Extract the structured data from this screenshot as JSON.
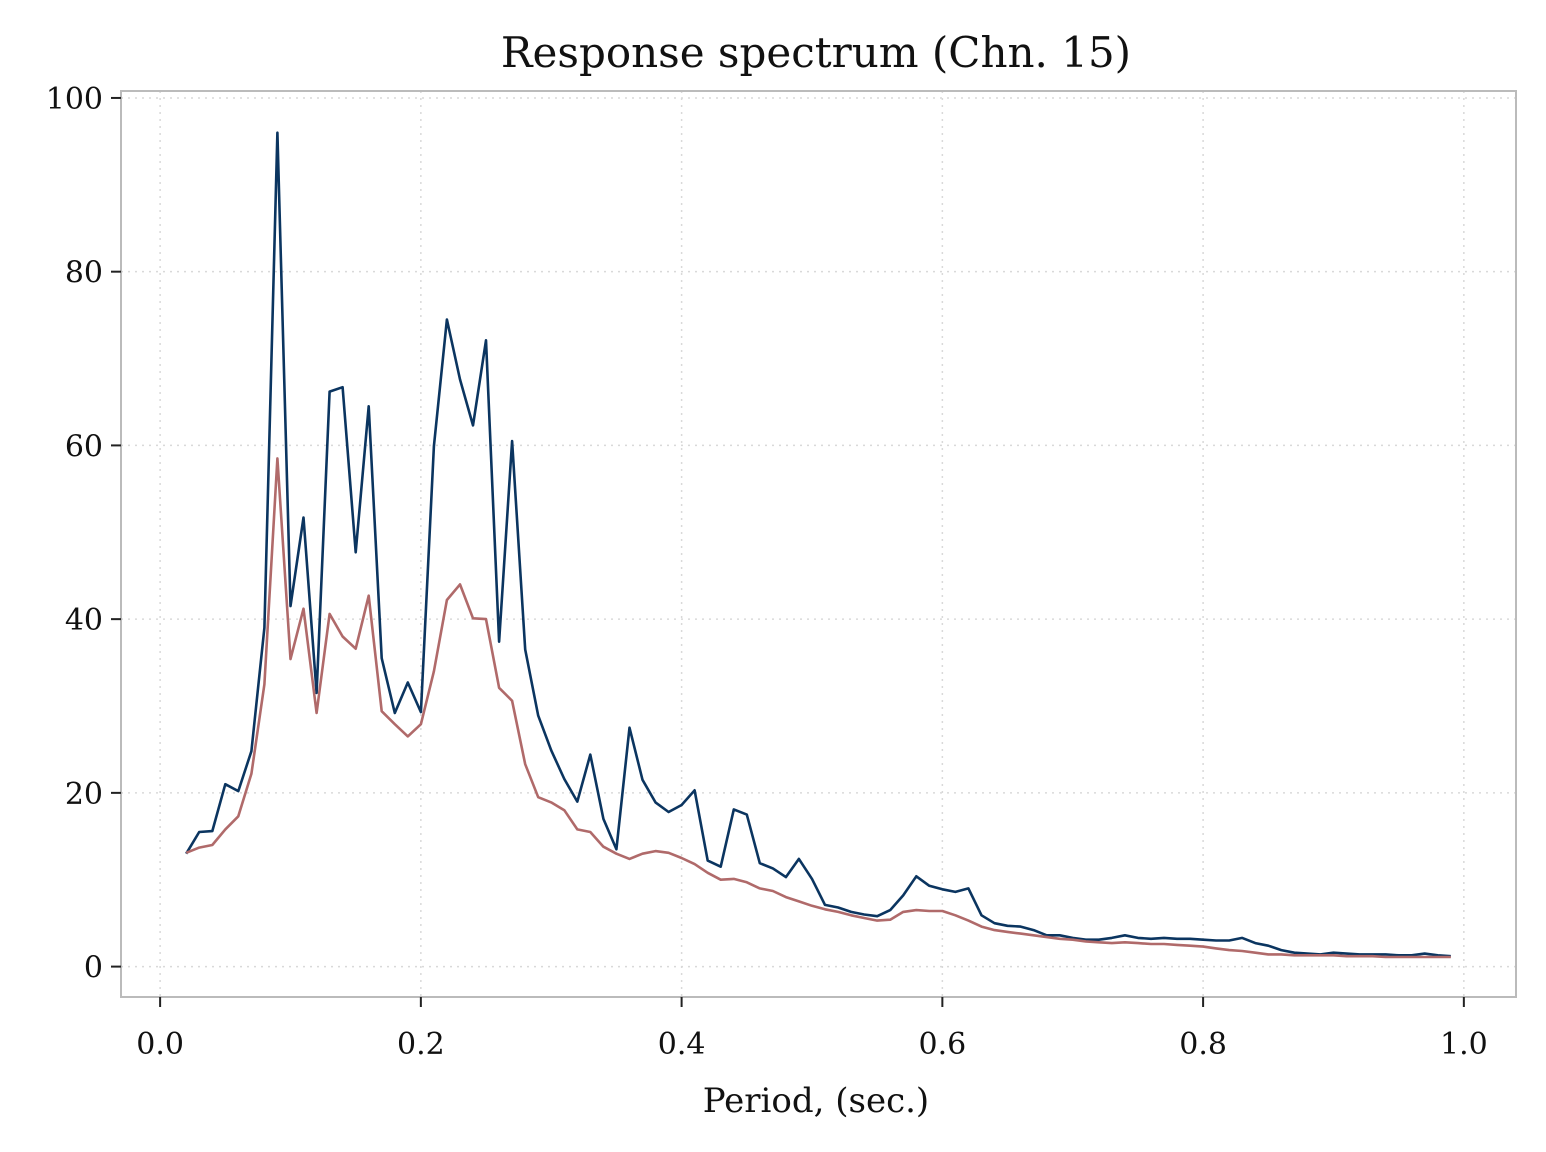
{
  "chart_data": {
    "type": "line",
    "title": "Response spectrum (Chn. 15)",
    "xlabel": "Period, (sec.)",
    "ylabel": "",
    "xlim": [
      -0.03,
      1.04
    ],
    "ylim": [
      -3.5,
      100.8
    ],
    "xticks": [
      0.0,
      0.2,
      0.4,
      0.6,
      0.8,
      1.0
    ],
    "xtick_labels": [
      "0.0",
      "0.2",
      "0.4",
      "0.6",
      "0.8",
      "1.0"
    ],
    "yticks": [
      0,
      20,
      40,
      60,
      80,
      100
    ],
    "ytick_labels": [
      "0",
      "20",
      "40",
      "60",
      "80",
      "100"
    ],
    "grid": true,
    "legend": false,
    "x": [
      0.02,
      0.03,
      0.04,
      0.05,
      0.06,
      0.07,
      0.08,
      0.09,
      0.1,
      0.11,
      0.12,
      0.13,
      0.14,
      0.15,
      0.16,
      0.17,
      0.18,
      0.19,
      0.2,
      0.21,
      0.22,
      0.23,
      0.24,
      0.25,
      0.26,
      0.27,
      0.28,
      0.29,
      0.3,
      0.31,
      0.32,
      0.33,
      0.34,
      0.35,
      0.36,
      0.37,
      0.38,
      0.39,
      0.4,
      0.41,
      0.42,
      0.43,
      0.44,
      0.45,
      0.46,
      0.47,
      0.48,
      0.49,
      0.5,
      0.51,
      0.52,
      0.53,
      0.54,
      0.55,
      0.56,
      0.57,
      0.58,
      0.59,
      0.6,
      0.61,
      0.62,
      0.63,
      0.64,
      0.65,
      0.66,
      0.67,
      0.68,
      0.69,
      0.7,
      0.71,
      0.72,
      0.73,
      0.74,
      0.75,
      0.76,
      0.77,
      0.78,
      0.79,
      0.8,
      0.81,
      0.82,
      0.83,
      0.84,
      0.85,
      0.86,
      0.87,
      0.88,
      0.89,
      0.9,
      0.91,
      0.92,
      0.93,
      0.94,
      0.95,
      0.96,
      0.97,
      0.98,
      0.99
    ],
    "series": [
      {
        "color": "#0b3560",
        "values": [
          13.0,
          15.5,
          15.6,
          21.0,
          20.2,
          24.8,
          39.0,
          96.0,
          41.5,
          51.7,
          31.5,
          66.2,
          66.7,
          47.7,
          64.5,
          35.5,
          29.2,
          32.7,
          29.3,
          59.9,
          74.5,
          67.6,
          62.3,
          72.1,
          37.4,
          60.5,
          36.5,
          28.9,
          24.9,
          21.6,
          19.0,
          24.4,
          17.0,
          13.5,
          27.5,
          21.5,
          18.9,
          17.8,
          18.6,
          20.3,
          12.2,
          11.5,
          18.1,
          17.5,
          11.9,
          11.3,
          10.3,
          12.4,
          10.1,
          7.1,
          6.8,
          6.3,
          6.0,
          5.8,
          6.5,
          8.2,
          10.4,
          9.3,
          8.9,
          8.6,
          9.0,
          5.9,
          5.0,
          4.7,
          4.6,
          4.2,
          3.6,
          3.6,
          3.3,
          3.1,
          3.1,
          3.3,
          3.6,
          3.3,
          3.2,
          3.3,
          3.2,
          3.2,
          3.1,
          3.0,
          3.0,
          3.3,
          2.7,
          2.4,
          1.9,
          1.6,
          1.5,
          1.4,
          1.6,
          1.5,
          1.4,
          1.4,
          1.4,
          1.3,
          1.3,
          1.5,
          1.3,
          1.2
        ]
      },
      {
        "color": "#b06a6a",
        "values": [
          13.1,
          13.7,
          14.0,
          15.8,
          17.3,
          22.2,
          32.5,
          58.5,
          35.4,
          41.2,
          29.2,
          40.6,
          38.0,
          36.6,
          42.7,
          29.4,
          27.9,
          26.5,
          27.9,
          34.0,
          42.2,
          44.0,
          40.1,
          40.0,
          32.1,
          30.6,
          23.3,
          19.5,
          18.9,
          18.0,
          15.8,
          15.5,
          13.8,
          13.0,
          12.4,
          13.0,
          13.3,
          13.1,
          12.5,
          11.8,
          10.8,
          10.0,
          10.1,
          9.7,
          9.0,
          8.7,
          8.0,
          7.5,
          7.0,
          6.6,
          6.3,
          5.9,
          5.6,
          5.3,
          5.4,
          6.3,
          6.5,
          6.4,
          6.4,
          5.9,
          5.3,
          4.6,
          4.2,
          4.0,
          3.8,
          3.6,
          3.4,
          3.2,
          3.1,
          2.9,
          2.8,
          2.7,
          2.8,
          2.7,
          2.6,
          2.6,
          2.5,
          2.4,
          2.3,
          2.1,
          1.9,
          1.8,
          1.6,
          1.4,
          1.4,
          1.3,
          1.3,
          1.3,
          1.3,
          1.2,
          1.2,
          1.2,
          1.1,
          1.1,
          1.1,
          1.1,
          1.1,
          1.1
        ]
      }
    ]
  }
}
